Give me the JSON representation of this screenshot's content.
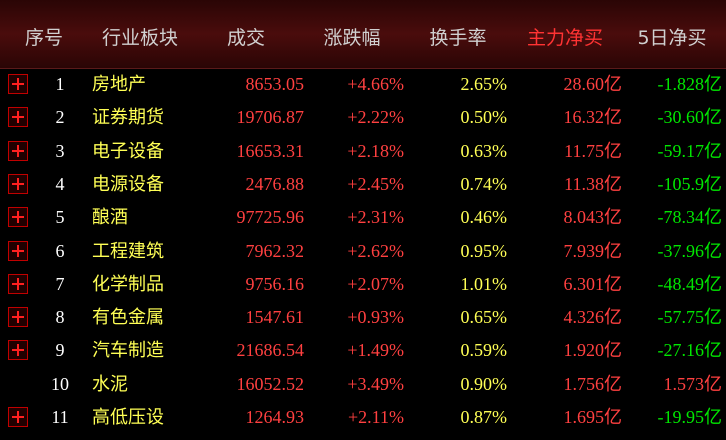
{
  "table": {
    "header": [
      "序号",
      "行业板块",
      "成交",
      "涨跌幅",
      "换手率",
      "主力净买",
      "5日净买"
    ],
    "rows": [
      [
        "1",
        "房地产",
        "8653.05",
        "+4.66%",
        "2.65%",
        "28.60亿",
        "-1.828亿"
      ],
      [
        "2",
        "证券期货",
        "19706.87",
        "+2.22%",
        "0.50%",
        "16.32亿",
        "-30.60亿"
      ],
      [
        "3",
        "电子设备",
        "16653.31",
        "+2.18%",
        "0.63%",
        "11.75亿",
        "-59.17亿"
      ],
      [
        "4",
        "电源设备",
        "2476.88",
        "+2.45%",
        "0.74%",
        "11.38亿",
        "-105.9亿"
      ],
      [
        "5",
        "酿酒",
        "97725.96",
        "+2.31%",
        "0.46%",
        "8.043亿",
        "-78.34亿"
      ],
      [
        "6",
        "工程建筑",
        "7962.32",
        "+2.62%",
        "0.95%",
        "7.939亿",
        "-37.96亿"
      ],
      [
        "7",
        "化学制品",
        "9756.16",
        "+2.07%",
        "1.01%",
        "6.301亿",
        "-48.49亿"
      ],
      [
        "8",
        "有色金属",
        "1547.61",
        "+0.93%",
        "0.65%",
        "4.326亿",
        "-57.75亿"
      ],
      [
        "9",
        "汽车制造",
        "21686.54",
        "+1.49%",
        "0.59%",
        "1.920亿",
        "-27.16亿"
      ],
      [
        "10",
        "水泥",
        "16052.52",
        "+3.49%",
        "0.90%",
        "1.756亿",
        "1.573亿"
      ],
      [
        "11",
        "高低压设",
        "1264.93",
        "+2.11%",
        "0.87%",
        "1.695亿",
        "-19.95亿"
      ]
    ],
    "expandable": [
      true,
      true,
      true,
      true,
      true,
      true,
      true,
      true,
      true,
      false,
      true
    ],
    "highlight_column": 5
  }
}
